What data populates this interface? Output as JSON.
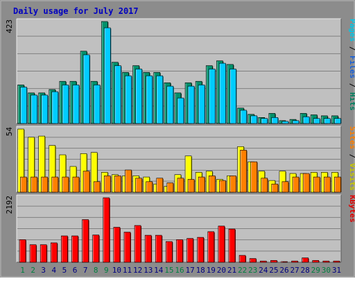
{
  "chart_data": {
    "type": "bar",
    "title": "Daily usage for July 2017",
    "x": [
      "1",
      "2",
      "3",
      "4",
      "5",
      "6",
      "7",
      "8",
      "9",
      "10",
      "11",
      "12",
      "13",
      "14",
      "15",
      "16",
      "17",
      "18",
      "19",
      "20",
      "21",
      "22",
      "23",
      "24",
      "25",
      "26",
      "27",
      "28",
      "29",
      "30",
      "31"
    ],
    "weekend_days": [
      "1",
      "2",
      "8",
      "9",
      "15",
      "16",
      "22",
      "23",
      "29",
      "30"
    ],
    "panels": [
      {
        "max_label": "423",
        "ymax": 423,
        "legend": [
          "Pages",
          "Files",
          "Hits"
        ],
        "legend_colors": [
          "#00c8e8",
          "#1860d8",
          "#008060"
        ],
        "series": [
          {
            "name": "Hits",
            "color": "#00906a",
            "values": [
              160,
              127,
              127,
              141,
              175,
              175,
              300,
              175,
              423,
              254,
              212,
              240,
              212,
              212,
              169,
              127,
              169,
              175,
              240,
              260,
              245,
              64,
              38,
              25,
              42,
              12,
              17,
              42,
              36,
              32,
              32
            ]
          },
          {
            "name": "Pages",
            "color": "#00ccff",
            "values": [
              151,
              118,
              118,
              132,
              160,
              160,
              285,
              160,
              397,
              240,
              198,
              226,
              198,
              198,
              155,
              106,
              155,
              160,
              226,
              250,
              226,
              55,
              32,
              21,
              25,
              9,
              12,
              28,
              21,
              21,
              21
            ]
          }
        ]
      },
      {
        "max_label": "54",
        "ymax": 54,
        "legend": [
          "Sites",
          "Visits"
        ],
        "legend_colors": [
          "#ff8000",
          "#c8c800"
        ],
        "series": [
          {
            "name": "Visits",
            "color": "#ffff00",
            "values": [
              54,
              47,
              48,
              40,
              32,
              22,
              33,
              34,
              17,
              15,
              14,
              14,
              13,
              7,
              5,
              15,
              31,
              17,
              18,
              11,
              14,
              39,
              26,
              18,
              10,
              18,
              16,
              16,
              17,
              17,
              17
            ]
          },
          {
            "name": "Sites",
            "color": "#ff8000",
            "values": [
              13,
              13,
              13,
              13,
              13,
              13,
              18,
              9,
              14,
              14,
              19,
              12,
              9,
              12,
              8,
              12,
              11,
              13,
              14,
              10,
              14,
              36,
              26,
              12,
              7,
              9,
              13,
              16,
              13,
              13,
              13
            ]
          }
        ]
      },
      {
        "max_label": "2192",
        "ymax": 2192,
        "legend": [
          "KBytes"
        ],
        "legend_colors": [
          "#e00000"
        ],
        "series": [
          {
            "name": "KBytes",
            "color": "#ff0000",
            "values": [
              768,
              597,
              597,
              661,
              896,
              896,
              1450,
              928,
              2192,
              1190,
              1024,
              1250,
              918,
              918,
              704,
              768,
              810,
              847,
              1040,
              1230,
              1130,
              235,
              128,
              43,
              64,
              22,
              43,
              150,
              64,
              43,
              43
            ]
          }
        ]
      }
    ],
    "colors": {
      "frame": "#8c8c8c",
      "plot_bg": "#c0c0c0",
      "gridline": "#808080",
      "title": "#0000c0",
      "weekday_label": "#000080",
      "weekend_label": "#008040"
    }
  }
}
